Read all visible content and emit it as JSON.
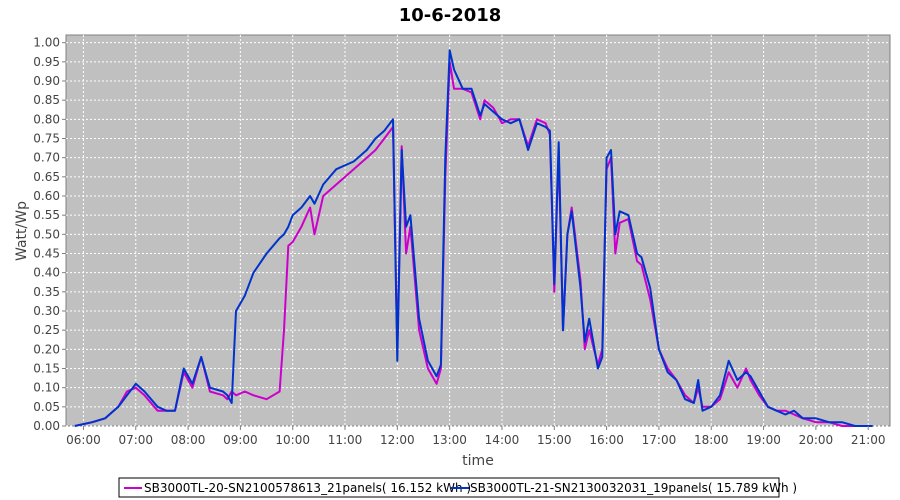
{
  "chart_data": {
    "type": "line",
    "title": "10-6-2018",
    "xlabel": "time",
    "ylabel": "Watt/Wp",
    "ylim": [
      0,
      1.02
    ],
    "xlim": [
      "05:40",
      "21:25"
    ],
    "grid": true,
    "legend_position": "bottom",
    "x_ticks": [
      "06:00",
      "07:00",
      "08:00",
      "09:00",
      "10:00",
      "11:00",
      "12:00",
      "13:00",
      "14:00",
      "15:00",
      "16:00",
      "17:00",
      "18:00",
      "19:00",
      "20:00",
      "21:00"
    ],
    "y_ticks": [
      "0.00",
      "0.05",
      "0.10",
      "0.15",
      "0.20",
      "0.25",
      "0.30",
      "0.35",
      "0.40",
      "0.45",
      "0.50",
      "0.55",
      "0.60",
      "0.65",
      "0.70",
      "0.75",
      "0.80",
      "0.85",
      "0.90",
      "0.95",
      "1.00"
    ],
    "x": [
      "05:50",
      "06:10",
      "06:25",
      "06:40",
      "06:50",
      "07:00",
      "07:10",
      "07:25",
      "07:35",
      "07:45",
      "07:55",
      "08:05",
      "08:15",
      "08:25",
      "08:40",
      "08:45",
      "08:50",
      "08:55",
      "09:05",
      "09:15",
      "09:30",
      "09:45",
      "09:50",
      "09:55",
      "10:00",
      "10:10",
      "10:20",
      "10:25",
      "10:35",
      "10:50",
      "11:10",
      "11:25",
      "11:35",
      "11:45",
      "11:55",
      "12:00",
      "12:05",
      "12:10",
      "12:15",
      "12:25",
      "12:35",
      "12:45",
      "12:50",
      "12:55",
      "13:00",
      "13:05",
      "13:15",
      "13:25",
      "13:35",
      "13:40",
      "13:50",
      "14:00",
      "14:10",
      "14:20",
      "14:30",
      "14:40",
      "14:50",
      "14:55",
      "15:00",
      "15:05",
      "15:10",
      "15:15",
      "15:20",
      "15:30",
      "15:35",
      "15:40",
      "15:50",
      "15:55",
      "16:00",
      "16:05",
      "16:10",
      "16:15",
      "16:25",
      "16:35",
      "16:40",
      "16:50",
      "17:00",
      "17:10",
      "17:20",
      "17:30",
      "17:40",
      "17:45",
      "17:50",
      "18:00",
      "18:10",
      "18:20",
      "18:30",
      "18:40",
      "18:45",
      "18:55",
      "19:05",
      "19:15",
      "19:25",
      "19:35",
      "19:45",
      "20:00",
      "20:15",
      "20:30",
      "20:45",
      "21:00",
      "21:05"
    ],
    "series": [
      {
        "name": "SB3000TL-20-SN2100578613_21panels( 16.152 kWh )",
        "color": "#cc00cc",
        "values": [
          0.0,
          0.01,
          0.02,
          0.05,
          0.09,
          0.1,
          0.08,
          0.04,
          0.04,
          0.04,
          0.14,
          0.1,
          0.18,
          0.09,
          0.08,
          0.07,
          0.09,
          0.08,
          0.09,
          0.08,
          0.07,
          0.09,
          0.25,
          0.47,
          0.48,
          0.52,
          0.57,
          0.5,
          0.6,
          0.63,
          0.67,
          0.7,
          0.72,
          0.75,
          0.78,
          0.2,
          0.73,
          0.45,
          0.52,
          0.25,
          0.15,
          0.11,
          0.15,
          0.65,
          0.95,
          0.88,
          0.88,
          0.87,
          0.8,
          0.85,
          0.83,
          0.79,
          0.8,
          0.8,
          0.73,
          0.8,
          0.79,
          0.76,
          0.35,
          0.72,
          0.25,
          0.5,
          0.57,
          0.38,
          0.2,
          0.25,
          0.16,
          0.2,
          0.67,
          0.7,
          0.45,
          0.53,
          0.54,
          0.43,
          0.42,
          0.33,
          0.2,
          0.15,
          0.12,
          0.08,
          0.06,
          0.1,
          0.05,
          0.05,
          0.07,
          0.14,
          0.1,
          0.15,
          0.12,
          0.08,
          0.05,
          0.04,
          0.04,
          0.03,
          0.02,
          0.01,
          0.01,
          0.0,
          0.0,
          0.0,
          0.0
        ]
      },
      {
        "name": "SB3000TL-21-SN2130032031_19panels( 15.789 kWh )",
        "color": "#0033cc",
        "values": [
          0.0,
          0.01,
          0.02,
          0.05,
          0.08,
          0.11,
          0.09,
          0.05,
          0.04,
          0.04,
          0.15,
          0.11,
          0.18,
          0.1,
          0.09,
          0.08,
          0.06,
          0.3,
          0.34,
          0.4,
          0.45,
          0.49,
          0.5,
          0.52,
          0.55,
          0.57,
          0.6,
          0.58,
          0.63,
          0.67,
          0.69,
          0.72,
          0.75,
          0.77,
          0.8,
          0.17,
          0.72,
          0.52,
          0.55,
          0.28,
          0.17,
          0.13,
          0.16,
          0.7,
          0.98,
          0.93,
          0.88,
          0.88,
          0.81,
          0.84,
          0.82,
          0.8,
          0.79,
          0.8,
          0.72,
          0.79,
          0.78,
          0.77,
          0.37,
          0.74,
          0.25,
          0.5,
          0.56,
          0.36,
          0.22,
          0.28,
          0.15,
          0.18,
          0.7,
          0.72,
          0.5,
          0.56,
          0.55,
          0.45,
          0.44,
          0.36,
          0.2,
          0.14,
          0.12,
          0.07,
          0.06,
          0.12,
          0.04,
          0.05,
          0.08,
          0.17,
          0.12,
          0.14,
          0.13,
          0.09,
          0.05,
          0.04,
          0.03,
          0.04,
          0.02,
          0.02,
          0.01,
          0.01,
          0.0,
          0.0,
          0.0
        ]
      }
    ]
  }
}
